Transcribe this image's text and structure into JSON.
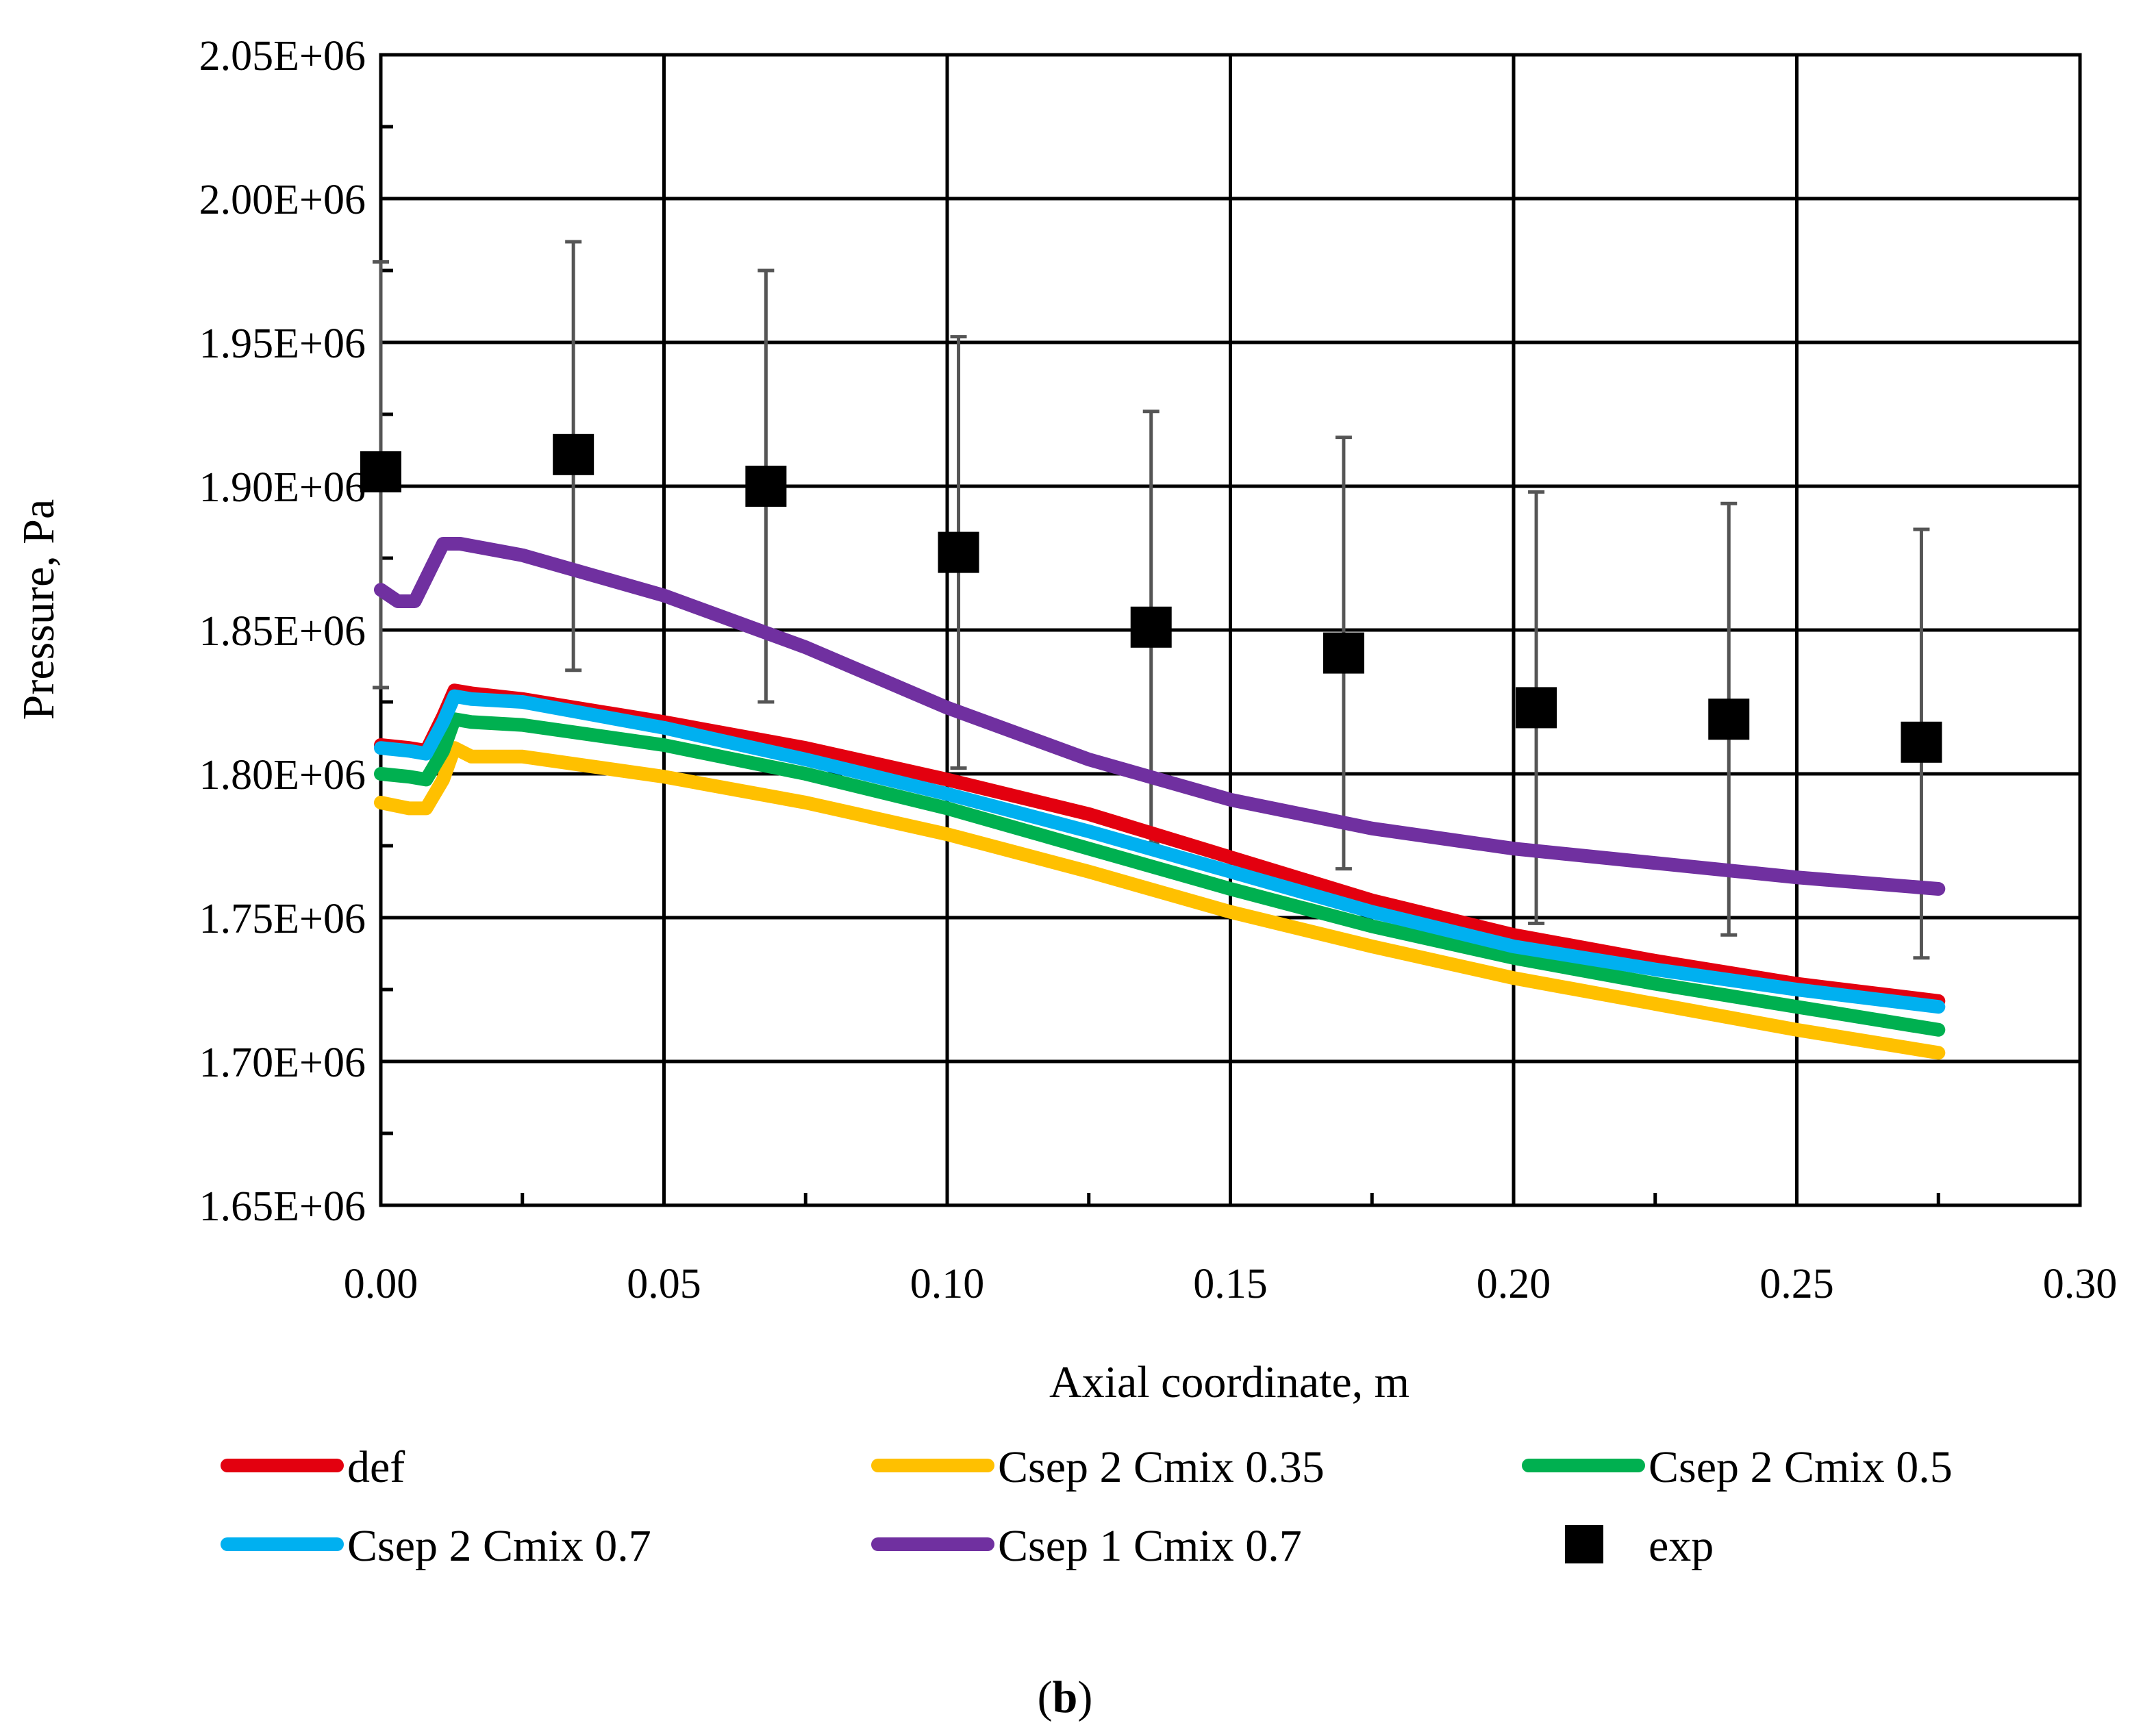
{
  "chart_data": {
    "type": "line",
    "title": "",
    "xlabel": "Axial coordinate, m",
    "ylabel": "Pressure, Pa",
    "xlim": [
      0.0,
      0.3
    ],
    "ylim": [
      1650000,
      2050000
    ],
    "x_ticks": [
      0.0,
      0.05,
      0.1,
      0.15,
      0.2,
      0.25,
      0.3
    ],
    "x_tick_labels": [
      "0.00",
      "0.05",
      "0.10",
      "0.15",
      "0.20",
      "0.25",
      "0.30"
    ],
    "y_ticks": [
      1650000,
      1700000,
      1750000,
      1800000,
      1850000,
      1900000,
      1950000,
      2000000,
      2050000
    ],
    "y_tick_labels": [
      "1.65E+06",
      "1.70E+06",
      "1.75E+06",
      "1.80E+06",
      "1.85E+06",
      "1.90E+06",
      "1.95E+06",
      "2.00E+06",
      "2.05E+06"
    ],
    "grid": true,
    "legend_position": "bottom",
    "series": [
      {
        "name": "def",
        "color": "#e3000f",
        "kind": "line",
        "points": [
          [
            0.0,
            1810000
          ],
          [
            0.005,
            1809000
          ],
          [
            0.008,
            1808000
          ],
          [
            0.011,
            1820000
          ],
          [
            0.013,
            1829000
          ],
          [
            0.016,
            1828000
          ],
          [
            0.025,
            1826000
          ],
          [
            0.05,
            1818000
          ],
          [
            0.075,
            1809000
          ],
          [
            0.1,
            1798000
          ],
          [
            0.125,
            1786000
          ],
          [
            0.15,
            1771000
          ],
          [
            0.175,
            1756000
          ],
          [
            0.2,
            1744000
          ],
          [
            0.225,
            1735000
          ],
          [
            0.25,
            1727000
          ],
          [
            0.275,
            1721000
          ]
        ]
      },
      {
        "name": "Csep 2 Cmix 0.35",
        "color": "#ffc000",
        "kind": "line",
        "points": [
          [
            0.0,
            1790000
          ],
          [
            0.005,
            1788000
          ],
          [
            0.008,
            1788000
          ],
          [
            0.011,
            1798000
          ],
          [
            0.013,
            1809000
          ],
          [
            0.016,
            1806000
          ],
          [
            0.025,
            1806000
          ],
          [
            0.05,
            1799000
          ],
          [
            0.075,
            1790000
          ],
          [
            0.1,
            1779000
          ],
          [
            0.125,
            1766000
          ],
          [
            0.15,
            1752000
          ],
          [
            0.175,
            1740000
          ],
          [
            0.2,
            1729000
          ],
          [
            0.225,
            1720000
          ],
          [
            0.25,
            1711000
          ],
          [
            0.275,
            1703000
          ]
        ]
      },
      {
        "name": "Csep 2 Cmix 0.5",
        "color": "#00b050",
        "kind": "line",
        "points": [
          [
            0.0,
            1800000
          ],
          [
            0.005,
            1799000
          ],
          [
            0.008,
            1798000
          ],
          [
            0.011,
            1808000
          ],
          [
            0.013,
            1819000
          ],
          [
            0.016,
            1818000
          ],
          [
            0.025,
            1817000
          ],
          [
            0.05,
            1810000
          ],
          [
            0.075,
            1800000
          ],
          [
            0.1,
            1788000
          ],
          [
            0.125,
            1774000
          ],
          [
            0.15,
            1760000
          ],
          [
            0.175,
            1747000
          ],
          [
            0.2,
            1736000
          ],
          [
            0.225,
            1727000
          ],
          [
            0.25,
            1719000
          ],
          [
            0.275,
            1711000
          ]
        ]
      },
      {
        "name": "Csep 2 Cmix 0.7",
        "color": "#00b0f0",
        "kind": "line",
        "points": [
          [
            0.0,
            1809000
          ],
          [
            0.005,
            1808000
          ],
          [
            0.008,
            1807000
          ],
          [
            0.011,
            1818000
          ],
          [
            0.013,
            1827000
          ],
          [
            0.016,
            1826000
          ],
          [
            0.025,
            1825000
          ],
          [
            0.05,
            1816000
          ],
          [
            0.075,
            1805000
          ],
          [
            0.1,
            1793000
          ],
          [
            0.125,
            1780000
          ],
          [
            0.15,
            1766000
          ],
          [
            0.175,
            1752000
          ],
          [
            0.2,
            1740000
          ],
          [
            0.225,
            1732000
          ],
          [
            0.25,
            1725000
          ],
          [
            0.275,
            1719000
          ]
        ]
      },
      {
        "name": "Csep 1 Cmix 0.7",
        "color": "#7030a0",
        "kind": "line",
        "points": [
          [
            0.0,
            1864000
          ],
          [
            0.003,
            1860000
          ],
          [
            0.006,
            1860000
          ],
          [
            0.009,
            1872000
          ],
          [
            0.011,
            1880000
          ],
          [
            0.014,
            1880000
          ],
          [
            0.025,
            1876000
          ],
          [
            0.05,
            1862000
          ],
          [
            0.075,
            1844000
          ],
          [
            0.1,
            1823000
          ],
          [
            0.125,
            1805000
          ],
          [
            0.15,
            1791000
          ],
          [
            0.175,
            1781000
          ],
          [
            0.2,
            1774000
          ],
          [
            0.225,
            1769000
          ],
          [
            0.25,
            1764000
          ],
          [
            0.275,
            1760000
          ]
        ]
      },
      {
        "name": "exp",
        "color": "#000000",
        "kind": "scatter",
        "points": [
          [
            0.0,
            1905000
          ],
          [
            0.034,
            1911000
          ],
          [
            0.068,
            1900000
          ],
          [
            0.102,
            1877000
          ],
          [
            0.136,
            1851000
          ],
          [
            0.17,
            1842000
          ],
          [
            0.204,
            1823000
          ],
          [
            0.238,
            1819000
          ],
          [
            0.272,
            1811000
          ]
        ],
        "error_upper": [
          1978000,
          1985000,
          1975000,
          1952000,
          1926000,
          1917000,
          1898000,
          1894000,
          1885000
        ],
        "error_lower": [
          1830000,
          1836000,
          1825000,
          1802000,
          1776000,
          1767000,
          1748000,
          1744000,
          1736000
        ]
      }
    ]
  },
  "caption": {
    "open": "(",
    "letter": "b",
    "close": ")"
  }
}
